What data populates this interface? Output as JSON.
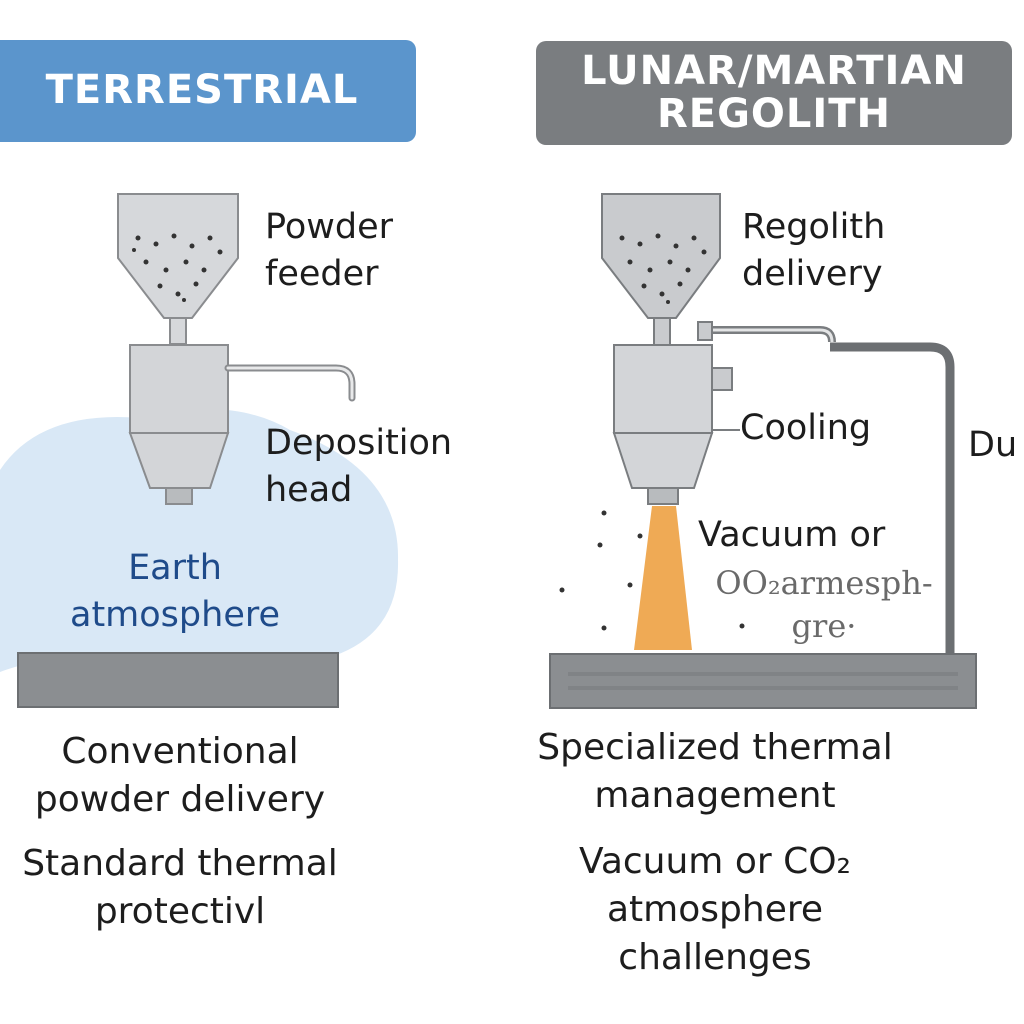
{
  "left": {
    "title": "TERRESTRIAL",
    "feeder_label": "Powder\nfeeder",
    "head_label": "Deposition\nhead",
    "atmosphere_label": "Earth\natmosphere",
    "caption_1": "Conventional\npowder delivery",
    "caption_2": "Standard thermal\nprotectivl"
  },
  "right": {
    "title": "LUNAR/MARTIAN\nREGOLITH",
    "feeder_label": "Regolith\ndelivery",
    "cooling_label": "Cooling",
    "duct_label": "Du",
    "atmosphere_label_1": "Vacuum or",
    "atmosphere_label_2": "OO₂armesph-\ngre·",
    "caption_1": "Specialized thermal\nmanagement",
    "caption_2": "Vacuum or CO₂\natmosphere\nchallenges"
  },
  "colors": {
    "terrestrial_header": "#5b95cc",
    "regolith_header": "#7a7d80",
    "atmosphere_cloud": "#d9e8f6",
    "beam": "#efaa55",
    "equipment": "#d3d5d8"
  }
}
